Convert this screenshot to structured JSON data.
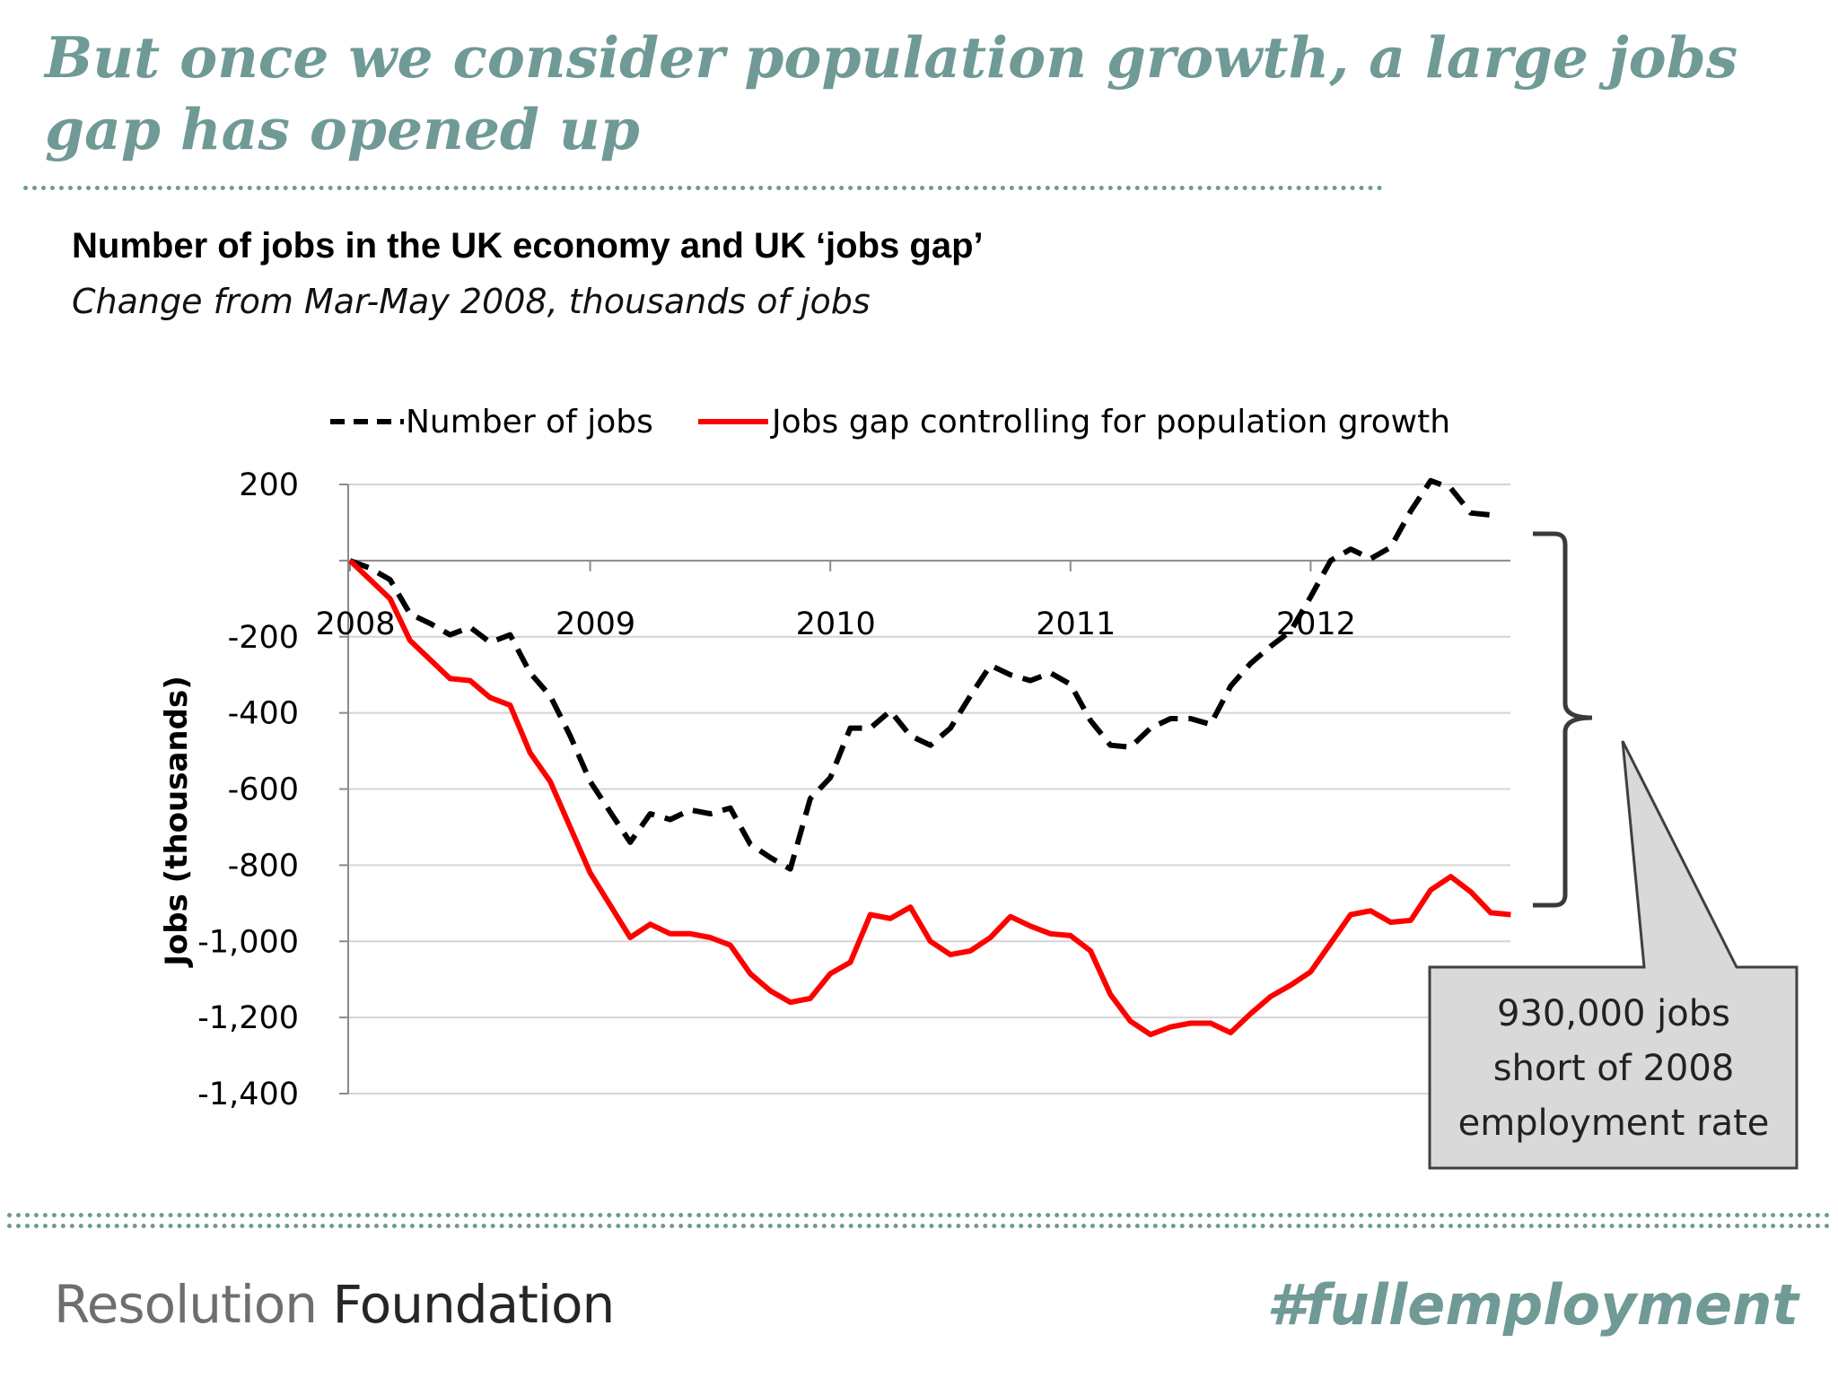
{
  "slide": {
    "headline": "But once we consider population growth, a large jobs gap has opened up",
    "accent_color": "#6f9a96",
    "footer_logo_part1": "Resolution",
    "footer_logo_part2": "Foundation",
    "footer_hashtag": "#fullemployment"
  },
  "chart_data": {
    "type": "line",
    "title": "Number of jobs in the UK economy and UK ‘jobs gap’",
    "subtitle": "Change from Mar-May 2008, thousands of jobs",
    "xlabel": "",
    "ylabel": "Jobs (thousands)",
    "ylim": [
      -1400,
      200
    ],
    "y_ticks": [
      200,
      0,
      -200,
      -400,
      -600,
      -800,
      -1000,
      -1200,
      -1400
    ],
    "y_tick_labels": [
      "200",
      "",
      "-200",
      "-400",
      "-600",
      "-800",
      "-1,000",
      "-1,200",
      "-1,400"
    ],
    "x_tick_labels": [
      "2008",
      "2009",
      "2010",
      "2011",
      "2012"
    ],
    "gridlines": true,
    "legend_position": "top",
    "series": [
      {
        "name": "Number of jobs",
        "color": "#000000",
        "style": "dashed",
        "values": [
          0,
          -20,
          -50,
          -140,
          -165,
          -195,
          -175,
          -215,
          -195,
          -295,
          -355,
          -460,
          -580,
          -660,
          -740,
          -665,
          -680,
          -655,
          -665,
          -650,
          -745,
          -780,
          -810,
          -625,
          -570,
          -440,
          -440,
          -395,
          -460,
          -485,
          -440,
          -355,
          -275,
          -300,
          -315,
          -295,
          -325,
          -420,
          -485,
          -490,
          -440,
          -415,
          -415,
          -430,
          -330,
          -270,
          -225,
          -185,
          -95,
          0,
          30,
          5,
          35,
          130,
          210,
          190,
          125,
          120
        ]
      },
      {
        "name": "Jobs gap controlling for population growth",
        "color": "#ff0000",
        "style": "solid",
        "values": [
          0,
          -50,
          -100,
          -210,
          -260,
          -310,
          -315,
          -360,
          -380,
          -505,
          -580,
          -700,
          -820,
          -905,
          -990,
          -955,
          -980,
          -980,
          -990,
          -1010,
          -1085,
          -1130,
          -1160,
          -1150,
          -1085,
          -1055,
          -930,
          -940,
          -910,
          -1000,
          -1035,
          -1025,
          -990,
          -935,
          -960,
          -980,
          -985,
          -1025,
          -1140,
          -1210,
          -1245,
          -1225,
          -1215,
          -1215,
          -1240,
          -1190,
          -1145,
          -1115,
          -1080,
          -1005,
          -930,
          -920,
          -950,
          -945,
          -865,
          -830,
          -870,
          -925,
          -930
        ]
      }
    ],
    "annotation": {
      "line1": "930,000 jobs",
      "line2": "short of 2008",
      "line3": "employment rate"
    }
  }
}
